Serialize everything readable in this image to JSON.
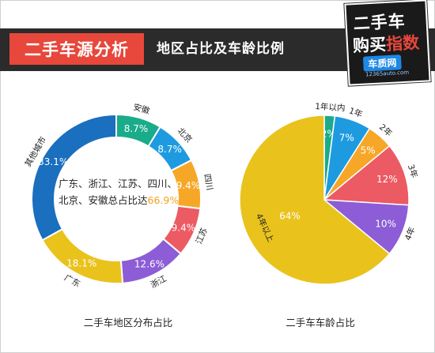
{
  "header": {
    "title": "二手车源分析",
    "subtitle": "地区占比及车龄比例"
  },
  "logo": {
    "line1": "二手车",
    "line2a": "购买",
    "line2b": "指数",
    "line3": "车质网",
    "line4": "12365auto.com"
  },
  "colors": {
    "teal": "#1aab8a",
    "blue": "#1e9be0",
    "orange": "#f7a727",
    "red": "#ec5a63",
    "purple": "#8c5dd6",
    "yellow": "#e9c21c",
    "darkblue": "#1a6fbe"
  },
  "chart_data": [
    {
      "type": "pie",
      "variant": "donut",
      "caption": "二手车地区分布占比",
      "center_text": "广东、浙江、江苏、四川、北京、安徽总占比达",
      "center_highlight": "66.9%",
      "slices": [
        {
          "label": "安徽",
          "value": 8.7,
          "value_label": "8.7%",
          "color": "#1aab8a"
        },
        {
          "label": "北京",
          "value": 8.7,
          "value_label": "8.7%",
          "color": "#1e9be0"
        },
        {
          "label": "四川",
          "value": 9.4,
          "value_label": "9.4%",
          "color": "#f7a727"
        },
        {
          "label": "江苏",
          "value": 9.4,
          "value_label": "9.4%",
          "color": "#ec5a63"
        },
        {
          "label": "浙江",
          "value": 12.6,
          "value_label": "12.6%",
          "color": "#8c5dd6"
        },
        {
          "label": "广东",
          "value": 18.1,
          "value_label": "18.1%",
          "color": "#e9c21c"
        },
        {
          "label": "其他城市",
          "value": 33.1,
          "value_label": "33.1%",
          "color": "#1a6fbe"
        }
      ]
    },
    {
      "type": "pie",
      "caption": "二手车车龄占比",
      "slices": [
        {
          "label": "1年以内",
          "value": 2,
          "value_label": "2%",
          "color": "#1aab8a"
        },
        {
          "label": "1年",
          "value": 7,
          "value_label": "7%",
          "color": "#1e9be0"
        },
        {
          "label": "2年",
          "value": 5,
          "value_label": "5%",
          "color": "#f7a727"
        },
        {
          "label": "3年",
          "value": 12,
          "value_label": "12%",
          "color": "#ec5a63"
        },
        {
          "label": "4年",
          "value": 10,
          "value_label": "10%",
          "color": "#8c5dd6"
        },
        {
          "label": "4年以上",
          "value": 64,
          "value_label": "64%",
          "color": "#e9c21c"
        }
      ]
    }
  ]
}
